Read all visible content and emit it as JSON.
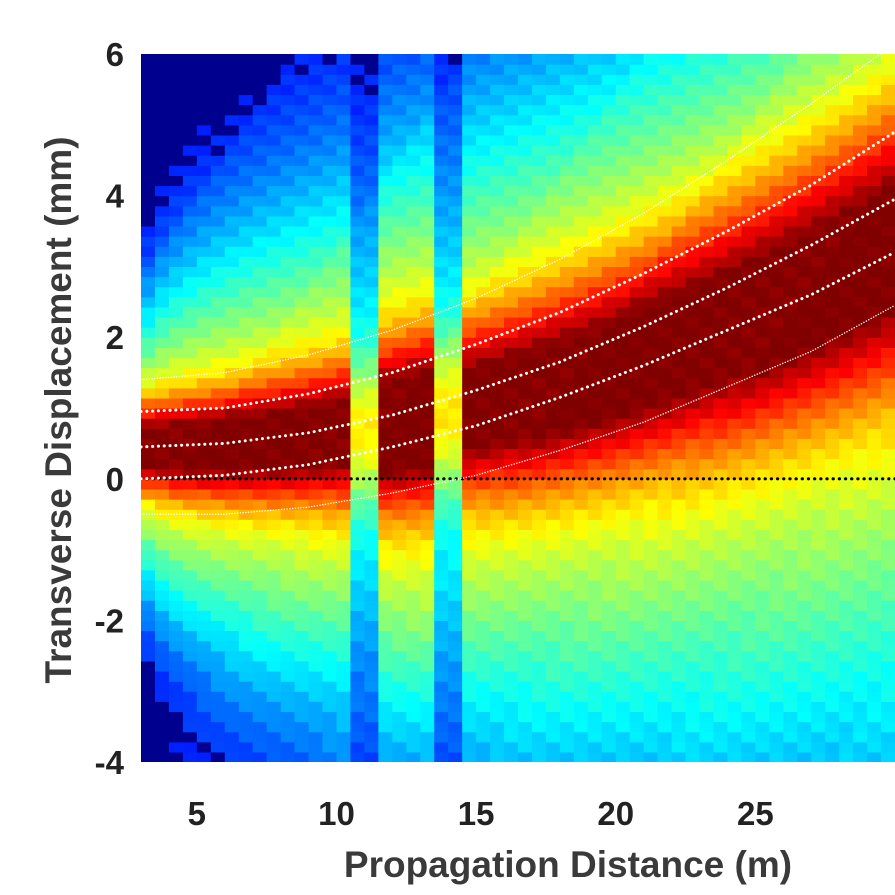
{
  "chart_data": {
    "type": "heatmap",
    "title": "",
    "xlabel": "Propagation Distance (m)",
    "ylabel": "Transverse Displacement (mm)",
    "xlim": [
      3,
      30
    ],
    "ylim": [
      -4,
      6
    ],
    "x_ticks": [
      {
        "value": 5,
        "label": "5"
      },
      {
        "value": 10,
        "label": "10"
      },
      {
        "value": 15,
        "label": "15"
      },
      {
        "value": 20,
        "label": "20"
      },
      {
        "value": 25,
        "label": "25"
      }
    ],
    "y_ticks": [
      {
        "value": 6,
        "label": "6"
      },
      {
        "value": 4,
        "label": "4"
      },
      {
        "value": 2,
        "label": "2"
      },
      {
        "value": 0,
        "label": "0"
      },
      {
        "value": -2,
        "label": "-2"
      },
      {
        "value": -4,
        "label": "-4"
      }
    ],
    "colormap": "jet",
    "grid": false,
    "heatmap_model": {
      "description_free": true,
      "beam_center_start_mm": 0.45,
      "beam_center_end_mm": 3.3,
      "core_halfwidth_start_mm": 0.5,
      "core_halfwidth_end_mm": 1.6,
      "outer_halfwidth_start_mm": 1.7,
      "outer_halfwidth_end_mm": 5.5,
      "dark_stripe_x_m": [
        11.1,
        13.9
      ],
      "bright_stripe_x_m": [
        11.6,
        12.5,
        13.2
      ]
    },
    "reference_lines": [
      {
        "color": "#000000",
        "style": "dotted",
        "width": 3.2,
        "x": [
          3,
          30
        ],
        "y": [
          0,
          0
        ]
      },
      {
        "color": "#ffffff",
        "style": "dotted",
        "width": 1.4,
        "x": [
          3,
          6,
          9,
          12,
          15,
          18,
          21,
          24,
          27,
          30
        ],
        "y": [
          1.4,
          1.5,
          1.75,
          2.1,
          2.55,
          3.1,
          3.75,
          4.5,
          5.3,
          6.15
        ]
      },
      {
        "color": "#ffffff",
        "style": "dotted",
        "width": 3.0,
        "x": [
          3,
          6,
          9,
          12,
          15,
          18,
          21,
          24,
          27,
          30
        ],
        "y": [
          0.95,
          1.0,
          1.2,
          1.5,
          1.9,
          2.35,
          2.9,
          3.5,
          4.15,
          4.9
        ]
      },
      {
        "color": "#ffffff",
        "style": "dotted",
        "width": 3.0,
        "x": [
          3,
          6,
          9,
          12,
          15,
          18,
          21,
          24,
          27,
          30
        ],
        "y": [
          0.45,
          0.5,
          0.65,
          0.9,
          1.25,
          1.65,
          2.15,
          2.7,
          3.3,
          3.95
        ]
      },
      {
        "color": "#ffffff",
        "style": "dotted",
        "width": 3.0,
        "x": [
          3,
          6,
          9,
          12,
          15,
          18,
          21,
          24,
          27,
          30
        ],
        "y": [
          0.0,
          0.05,
          0.2,
          0.45,
          0.75,
          1.15,
          1.6,
          2.1,
          2.6,
          3.2
        ]
      },
      {
        "color": "#ffffff",
        "style": "dotted",
        "width": 1.4,
        "x": [
          3,
          6,
          9,
          12,
          15,
          18,
          21,
          24,
          27,
          30
        ],
        "y": [
          -0.5,
          -0.5,
          -0.4,
          -0.2,
          0.05,
          0.4,
          0.8,
          1.3,
          1.8,
          2.45
        ]
      }
    ]
  }
}
